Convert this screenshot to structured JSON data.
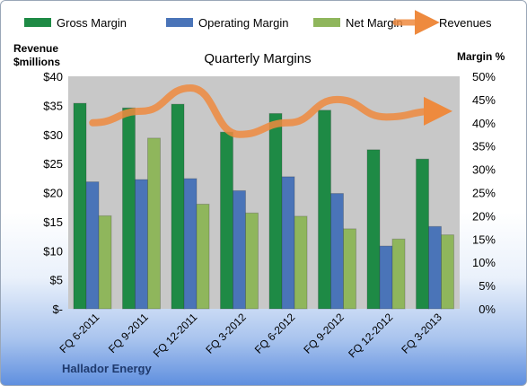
{
  "chart_data": {
    "type": "bar",
    "title": "Quarterly Margins",
    "company": "Hallador Energy",
    "left_axis_label": [
      "Revenue",
      "$millions"
    ],
    "right_axis_label": "Margin %",
    "left_ticks": [
      "$-",
      "$5",
      "$10",
      "$15",
      "$20",
      "$25",
      "$30",
      "$35",
      "$40"
    ],
    "right_ticks": [
      "0%",
      "5%",
      "10%",
      "15%",
      "20%",
      "25%",
      "30%",
      "35%",
      "40%",
      "45%",
      "50%"
    ],
    "left_range": [
      0,
      40
    ],
    "right_range": [
      0,
      50
    ],
    "categories": [
      "FQ 6-2011",
      "FQ 9-2011",
      "FQ 12-2011",
      "FQ 3-2012",
      "FQ 6-2012",
      "FQ 9-2012",
      "FQ 12-2012",
      "FQ 3-2013"
    ],
    "series": [
      {
        "name": "Gross Margin",
        "axis": "right",
        "color": "#1e8a45",
        "values": [
          44.2,
          43.2,
          44.0,
          38.0,
          42.0,
          42.7,
          34.2,
          32.2
        ]
      },
      {
        "name": "Operating Margin",
        "axis": "right",
        "color": "#4a74b8",
        "values": [
          27.3,
          27.8,
          28.0,
          25.4,
          28.4,
          24.8,
          13.5,
          17.7
        ]
      },
      {
        "name": "Net Margin",
        "axis": "right",
        "color": "#8fb65c",
        "values": [
          20.0,
          36.7,
          22.5,
          20.6,
          19.9,
          17.2,
          15.0,
          15.9
        ]
      },
      {
        "name": "Revenues",
        "axis": "left",
        "type": "line",
        "color": "#ee8a3e",
        "values": [
          32.0,
          34.0,
          38.0,
          30.0,
          32.0,
          36.0,
          33.0,
          34.0
        ]
      }
    ],
    "legend_position": "top",
    "grid": false,
    "plot_background": "#c8c8c8"
  }
}
